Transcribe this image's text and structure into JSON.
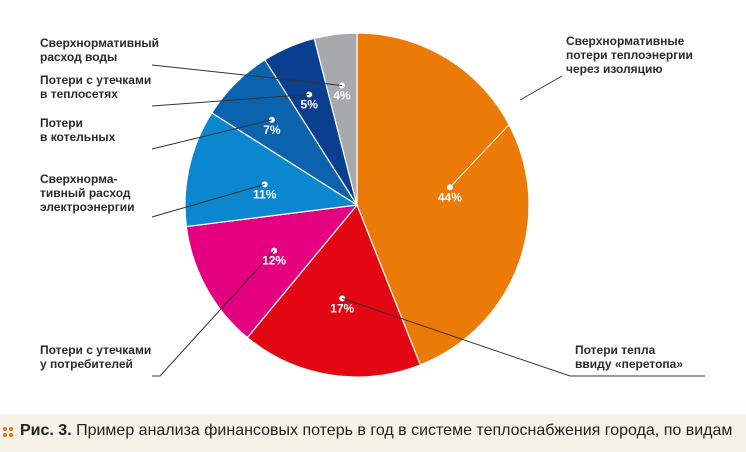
{
  "chart_data": {
    "type": "pie",
    "start_angle_deg": 0,
    "direction": "clockwise",
    "slices": [
      {
        "label": "Сверхнормативные\nпотери теплоэнергии\nчерез изоляцию",
        "value": 44,
        "display": "44%",
        "color": "#ec7a07",
        "value_color": "#ffffff"
      },
      {
        "label": "Потери тепла\nввиду «перетопа»",
        "value": 17,
        "display": "17%",
        "color": "#e30613",
        "value_color": "#ffffff"
      },
      {
        "label": "Потери с утечками\nу потребителей",
        "value": 12,
        "display": "12%",
        "color": "#e4007f",
        "value_color": "#ffffff"
      },
      {
        "label": "Сверхнорма-\nтивный расход\nэлектроэнергии",
        "value": 11,
        "display": "11%",
        "color": "#0a87cf",
        "value_color": "#ffffff"
      },
      {
        "label": "Потери\nв котельных",
        "value": 7,
        "display": "7%",
        "color": "#0b63ad",
        "value_color": "#ffffff"
      },
      {
        "label": "Потери с утечками\nв теплосетях",
        "value": 5,
        "display": "5%",
        "color": "#0a3f8f",
        "value_color": "#ffffff"
      },
      {
        "label": "Сверхнормативный\nрасход воды",
        "value": 4,
        "display": "4%",
        "color": "#a7a9ac",
        "value_color": "#ffffff"
      }
    ]
  },
  "caption": {
    "prefix": "Рис. 3.",
    "text": " Пример анализа финансовых потерь в год в системе теплоснабжения города, по видам",
    "accent_color": "#e2701a"
  }
}
